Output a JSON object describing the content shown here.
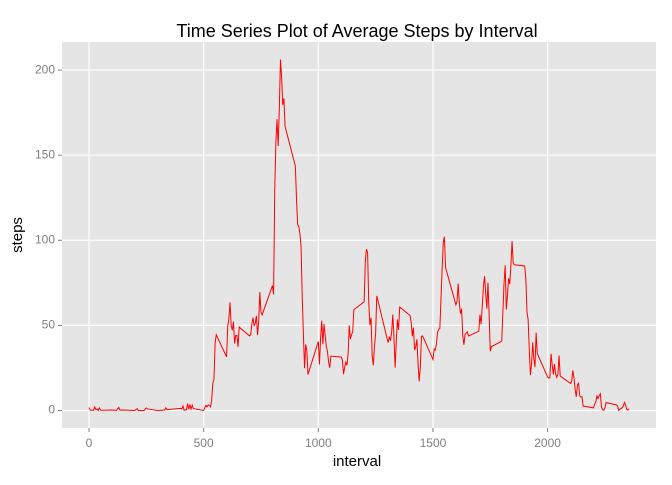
{
  "chart_data": {
    "type": "line",
    "title": "Time Series Plot of Average Steps by Interval",
    "x_label": "interval",
    "y_label": "steps",
    "color": "#ff0000",
    "grid": true,
    "xlim": [
      -117.75,
      2472.75
    ],
    "xticks": [
      0,
      500,
      1000,
      1500,
      2000
    ],
    "ylim": [
      -10.3,
      216.5
    ],
    "yticks": [
      0,
      50,
      100,
      150,
      200
    ],
    "x": [
      0,
      5,
      10,
      15,
      20,
      25,
      30,
      35,
      40,
      45,
      50,
      55,
      100,
      110,
      120,
      125,
      130,
      135,
      150,
      200,
      210,
      215,
      230,
      240,
      250,
      255,
      300,
      330,
      335,
      340,
      400,
      405,
      410,
      415,
      420,
      425,
      430,
      435,
      440,
      445,
      450,
      455,
      500,
      505,
      510,
      515,
      520,
      525,
      530,
      535,
      540,
      545,
      550,
      555,
      600,
      605,
      610,
      615,
      620,
      625,
      630,
      635,
      640,
      645,
      650,
      655,
      700,
      705,
      710,
      715,
      720,
      725,
      730,
      735,
      740,
      745,
      750,
      755,
      800,
      805,
      810,
      815,
      820,
      825,
      830,
      835,
      840,
      845,
      850,
      855,
      900,
      905,
      910,
      915,
      920,
      925,
      930,
      935,
      940,
      945,
      950,
      955,
      1000,
      1005,
      1010,
      1015,
      1020,
      1025,
      1030,
      1035,
      1040,
      1045,
      1050,
      1055,
      1100,
      1105,
      1110,
      1115,
      1120,
      1125,
      1130,
      1135,
      1140,
      1145,
      1150,
      1155,
      1200,
      1205,
      1210,
      1215,
      1220,
      1225,
      1230,
      1235,
      1240,
      1245,
      1250,
      1255,
      1300,
      1305,
      1310,
      1315,
      1320,
      1325,
      1330,
      1335,
      1340,
      1345,
      1350,
      1355,
      1400,
      1405,
      1410,
      1415,
      1420,
      1425,
      1430,
      1435,
      1440,
      1445,
      1450,
      1455,
      1500,
      1505,
      1510,
      1515,
      1520,
      1525,
      1530,
      1535,
      1540,
      1545,
      1550,
      1555,
      1600,
      1605,
      1610,
      1615,
      1620,
      1625,
      1630,
      1635,
      1640,
      1645,
      1650,
      1655,
      1700,
      1705,
      1710,
      1715,
      1720,
      1725,
      1730,
      1735,
      1740,
      1745,
      1750,
      1755,
      1800,
      1805,
      1810,
      1815,
      1820,
      1825,
      1830,
      1835,
      1840,
      1845,
      1850,
      1855,
      1900,
      1905,
      1910,
      1915,
      1920,
      1925,
      1930,
      1935,
      1940,
      1945,
      1950,
      1955,
      2000,
      2005,
      2010,
      2015,
      2020,
      2025,
      2030,
      2035,
      2040,
      2045,
      2050,
      2055,
      2100,
      2105,
      2110,
      2115,
      2120,
      2125,
      2130,
      2135,
      2140,
      2145,
      2150,
      2155,
      2200,
      2205,
      2210,
      2215,
      2220,
      2225,
      2230,
      2235,
      2240,
      2245,
      2250,
      2255,
      2300,
      2305,
      2310,
      2315,
      2320,
      2325,
      2330,
      2335,
      2340,
      2345,
      2350,
      2355
    ],
    "values": [
      1.7,
      0.3,
      0.1,
      0.2,
      0.1,
      2.1,
      0.5,
      0.9,
      0,
      1.5,
      0.3,
      0.1,
      0.3,
      0.2,
      0,
      1.1,
      1.8,
      0.2,
      0.3,
      0,
      1.1,
      0,
      0,
      0,
      1.5,
      0.9,
      0,
      0.3,
      1.6,
      0.5,
      1.2,
      0.9,
      2.6,
      0,
      0.3,
      0.4,
      4.1,
      0.7,
      3.5,
      0.8,
      3.1,
      1.1,
      0,
      1.6,
      3.0,
      2.2,
      3.3,
      3.0,
      2.1,
      6.1,
      16.0,
      18.3,
      39.5,
      44.5,
      31.5,
      49.3,
      53.8,
      63.5,
      50.0,
      47.1,
      52.2,
      39.3,
      44.0,
      44.2,
      37.4,
      49.0,
      43.8,
      44.4,
      50.5,
      54.5,
      49.9,
      51.0,
      55.7,
      44.3,
      52.3,
      69.5,
      57.8,
      56.2,
      73.4,
      68.2,
      129.4,
      157.5,
      171.2,
      155.4,
      177.3,
      206.2,
      195.9,
      179.6,
      183.4,
      167.0,
      143.5,
      124.0,
      109.1,
      108.1,
      103.7,
      96.0,
      66.2,
      45.2,
      24.8,
      38.8,
      35.0,
      21.1,
      40.6,
      27.0,
      42.4,
      52.7,
      38.9,
      50.8,
      44.3,
      37.4,
      34.7,
      28.3,
      25.1,
      31.9,
      31.4,
      29.7,
      21.3,
      25.5,
      28.4,
      26.5,
      33.4,
      50.0,
      42.0,
      44.6,
      46.0,
      59.2,
      63.9,
      87.7,
      94.8,
      92.8,
      63.4,
      50.2,
      54.5,
      32.4,
      26.5,
      37.7,
      45.1,
      67.3,
      42.3,
      39.9,
      43.3,
      41.0,
      46.2,
      56.4,
      42.8,
      25.1,
      40.0,
      53.5,
      47.3,
      60.8,
      55.8,
      52.0,
      43.6,
      48.7,
      35.5,
      37.5,
      41.8,
      27.5,
      17.1,
      26.1,
      43.6,
      43.8,
      30.0,
      36.1,
      35.5,
      38.8,
      46.0,
      47.8,
      48.1,
      65.3,
      82.9,
      98.7,
      102.1,
      84.0,
      62.1,
      64.1,
      74.5,
      63.2,
      56.9,
      59.8,
      43.9,
      38.6,
      44.7,
      45.5,
      46.2,
      43.7,
      46.6,
      56.3,
      50.7,
      61.2,
      72.7,
      78.9,
      68.9,
      59.7,
      75.1,
      56.5,
      34.8,
      37.5,
      40.7,
      58.0,
      74.7,
      85.3,
      59.3,
      67.8,
      77.7,
      74.2,
      85.3,
      99.5,
      86.6,
      85.6,
      84.9,
      77.8,
      58.0,
      53.4,
      36.3,
      20.7,
      27.4,
      40.0,
      30.2,
      25.5,
      45.7,
      33.5,
      19.6,
      19.0,
      19.3,
      33.3,
      26.8,
      21.2,
      27.3,
      21.3,
      19.5,
      21.3,
      32.3,
      20.2,
      15.9,
      17.2,
      23.5,
      19.2,
      12.5,
      8.0,
      14.7,
      16.3,
      8.7,
      7.8,
      8.1,
      2.6,
      1.5,
      3.7,
      4.8,
      8.5,
      7.1,
      8.7,
      9.8,
      2.2,
      0.3,
      0.1,
      1.6,
      4.6,
      3.3,
      2.8,
      0,
      0.8,
      1.0,
      1.6,
      2.6,
      4.7,
      3.3,
      0.6,
      0.2,
      1.1
    ]
  }
}
